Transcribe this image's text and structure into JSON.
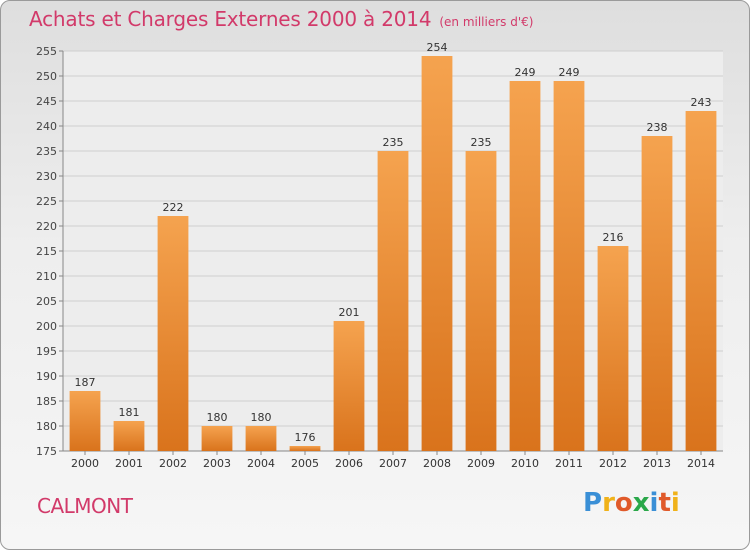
{
  "chart_data": {
    "type": "bar",
    "title": "Achats et Charges Externes 2000 à 2014",
    "unit_note": "(en milliers d'€)",
    "categories": [
      "2000",
      "2001",
      "2002",
      "2003",
      "2004",
      "2005",
      "2006",
      "2007",
      "2008",
      "2009",
      "2010",
      "2011",
      "2012",
      "2013",
      "2014"
    ],
    "values": [
      187,
      181,
      222,
      180,
      180,
      176,
      201,
      235,
      254,
      235,
      249,
      249,
      216,
      238,
      243
    ],
    "ylim": [
      175,
      255
    ],
    "yticks": [
      175,
      180,
      185,
      190,
      195,
      200,
      205,
      210,
      215,
      220,
      225,
      230,
      235,
      240,
      245,
      250,
      255
    ],
    "grid": true,
    "bar_color_top": "#f5a34f",
    "bar_color_bottom": "#d9731c"
  },
  "footer": {
    "commune": "CALMONT",
    "logo_letters": [
      "P",
      "r",
      "o",
      "x",
      "i",
      "t",
      "i"
    ],
    "logo_colors": [
      "#3a8fd6",
      "#f0b21a",
      "#e05a2a",
      "#2aa84a",
      "#3a8fd6",
      "#e05a2a",
      "#f0b21a"
    ]
  }
}
